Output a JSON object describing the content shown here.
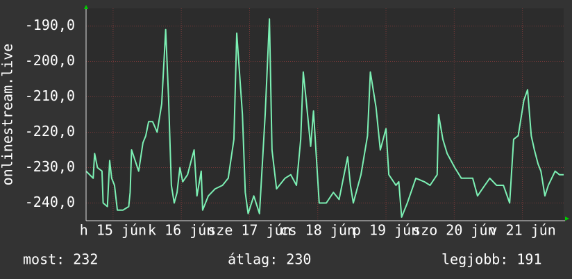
{
  "chart_data": {
    "type": "line",
    "ylabel": "onlinestream.live",
    "x": [
      0,
      2.5,
      3,
      4,
      5.6,
      6,
      7.5,
      8.3,
      9,
      10,
      11,
      13,
      15,
      15.5,
      16,
      18.5,
      20,
      21,
      22,
      23.4,
      25,
      26.6,
      28,
      29,
      30,
      31,
      32,
      33,
      34,
      35.7,
      37,
      38,
      39,
      40.5,
      41,
      43,
      45.4,
      48,
      50,
      52,
      53,
      55,
      56,
      57,
      59,
      61,
      63,
      64.5,
      65.4,
      67,
      70,
      72,
      74,
      75.5,
      76.4,
      77.3,
      79,
      80,
      82,
      84.5,
      87,
      89,
      92,
      93,
      94,
      96.7,
      99,
      100,
      102,
      103.5,
      105.5,
      106.5,
      109,
      110,
      111,
      113,
      116,
      119,
      121,
      123.5,
      124,
      125.5,
      127,
      129.7,
      132,
      136,
      137.7,
      139.4,
      142,
      144.4,
      146.8,
      149,
      150.4,
      152,
      154,
      155.3,
      156.6,
      157.7,
      159,
      160,
      161.4,
      162.6,
      165,
      166.5,
      168
    ],
    "values": [
      -231,
      -233,
      -226,
      -230,
      -231,
      -240,
      -241,
      -228,
      -233,
      -235,
      -242,
      -242,
      -241,
      -237,
      -225,
      -231,
      -223,
      -221,
      -217,
      -217,
      -220,
      -212,
      -191,
      -210,
      -235,
      -240,
      -237,
      -230,
      -234,
      -232,
      -228,
      -225,
      -238,
      -231,
      -242,
      -238,
      -236,
      -235,
      -233,
      -222,
      -192,
      -215,
      -237,
      -243,
      -238,
      -243,
      -215,
      -188,
      -225,
      -236,
      -233,
      -232,
      -235,
      -222,
      -203,
      -210,
      -224,
      -214,
      -240,
      -240,
      -237,
      -239,
      -227,
      -235,
      -240,
      -232,
      -221,
      -203,
      -213,
      -225,
      -219,
      -232,
      -235,
      -234,
      -244,
      -240,
      -233,
      -234,
      -235,
      -232,
      -215,
      -222,
      -226,
      -230,
      -233,
      -233,
      -238,
      -236,
      -233,
      -235,
      -235,
      -240,
      -222,
      -221,
      -211,
      -208,
      -221,
      -225,
      -229,
      -231,
      -238,
      -235,
      -231,
      -232,
      -232
    ],
    "color": "#7cf0b4",
    "xlim": [
      0,
      168
    ],
    "ylim": [
      -245,
      -185
    ],
    "xticks": [
      {
        "value": 9.5,
        "label": "h 15 jún"
      },
      {
        "value": 33.5,
        "label": "k 16 jún"
      },
      {
        "value": 57.5,
        "label": "sze 17 jún"
      },
      {
        "value": 81.5,
        "label": "cs 18 jún"
      },
      {
        "value": 105.5,
        "label": "p 19 jún"
      },
      {
        "value": 129.5,
        "label": "szo 20 jún"
      },
      {
        "value": 153.5,
        "label": "v 21 jún"
      }
    ],
    "yticks": [
      {
        "value": -190,
        "label": "-190,0"
      },
      {
        "value": -200,
        "label": "-200,0"
      },
      {
        "value": -210,
        "label": "-210,0"
      },
      {
        "value": -220,
        "label": "-220,0"
      },
      {
        "value": -230,
        "label": "-230,0"
      },
      {
        "value": -240,
        "label": "-240,0"
      }
    ],
    "grid": true,
    "stats": [
      "most: 232",
      "átlag: 230",
      "legjobb: 191"
    ]
  }
}
